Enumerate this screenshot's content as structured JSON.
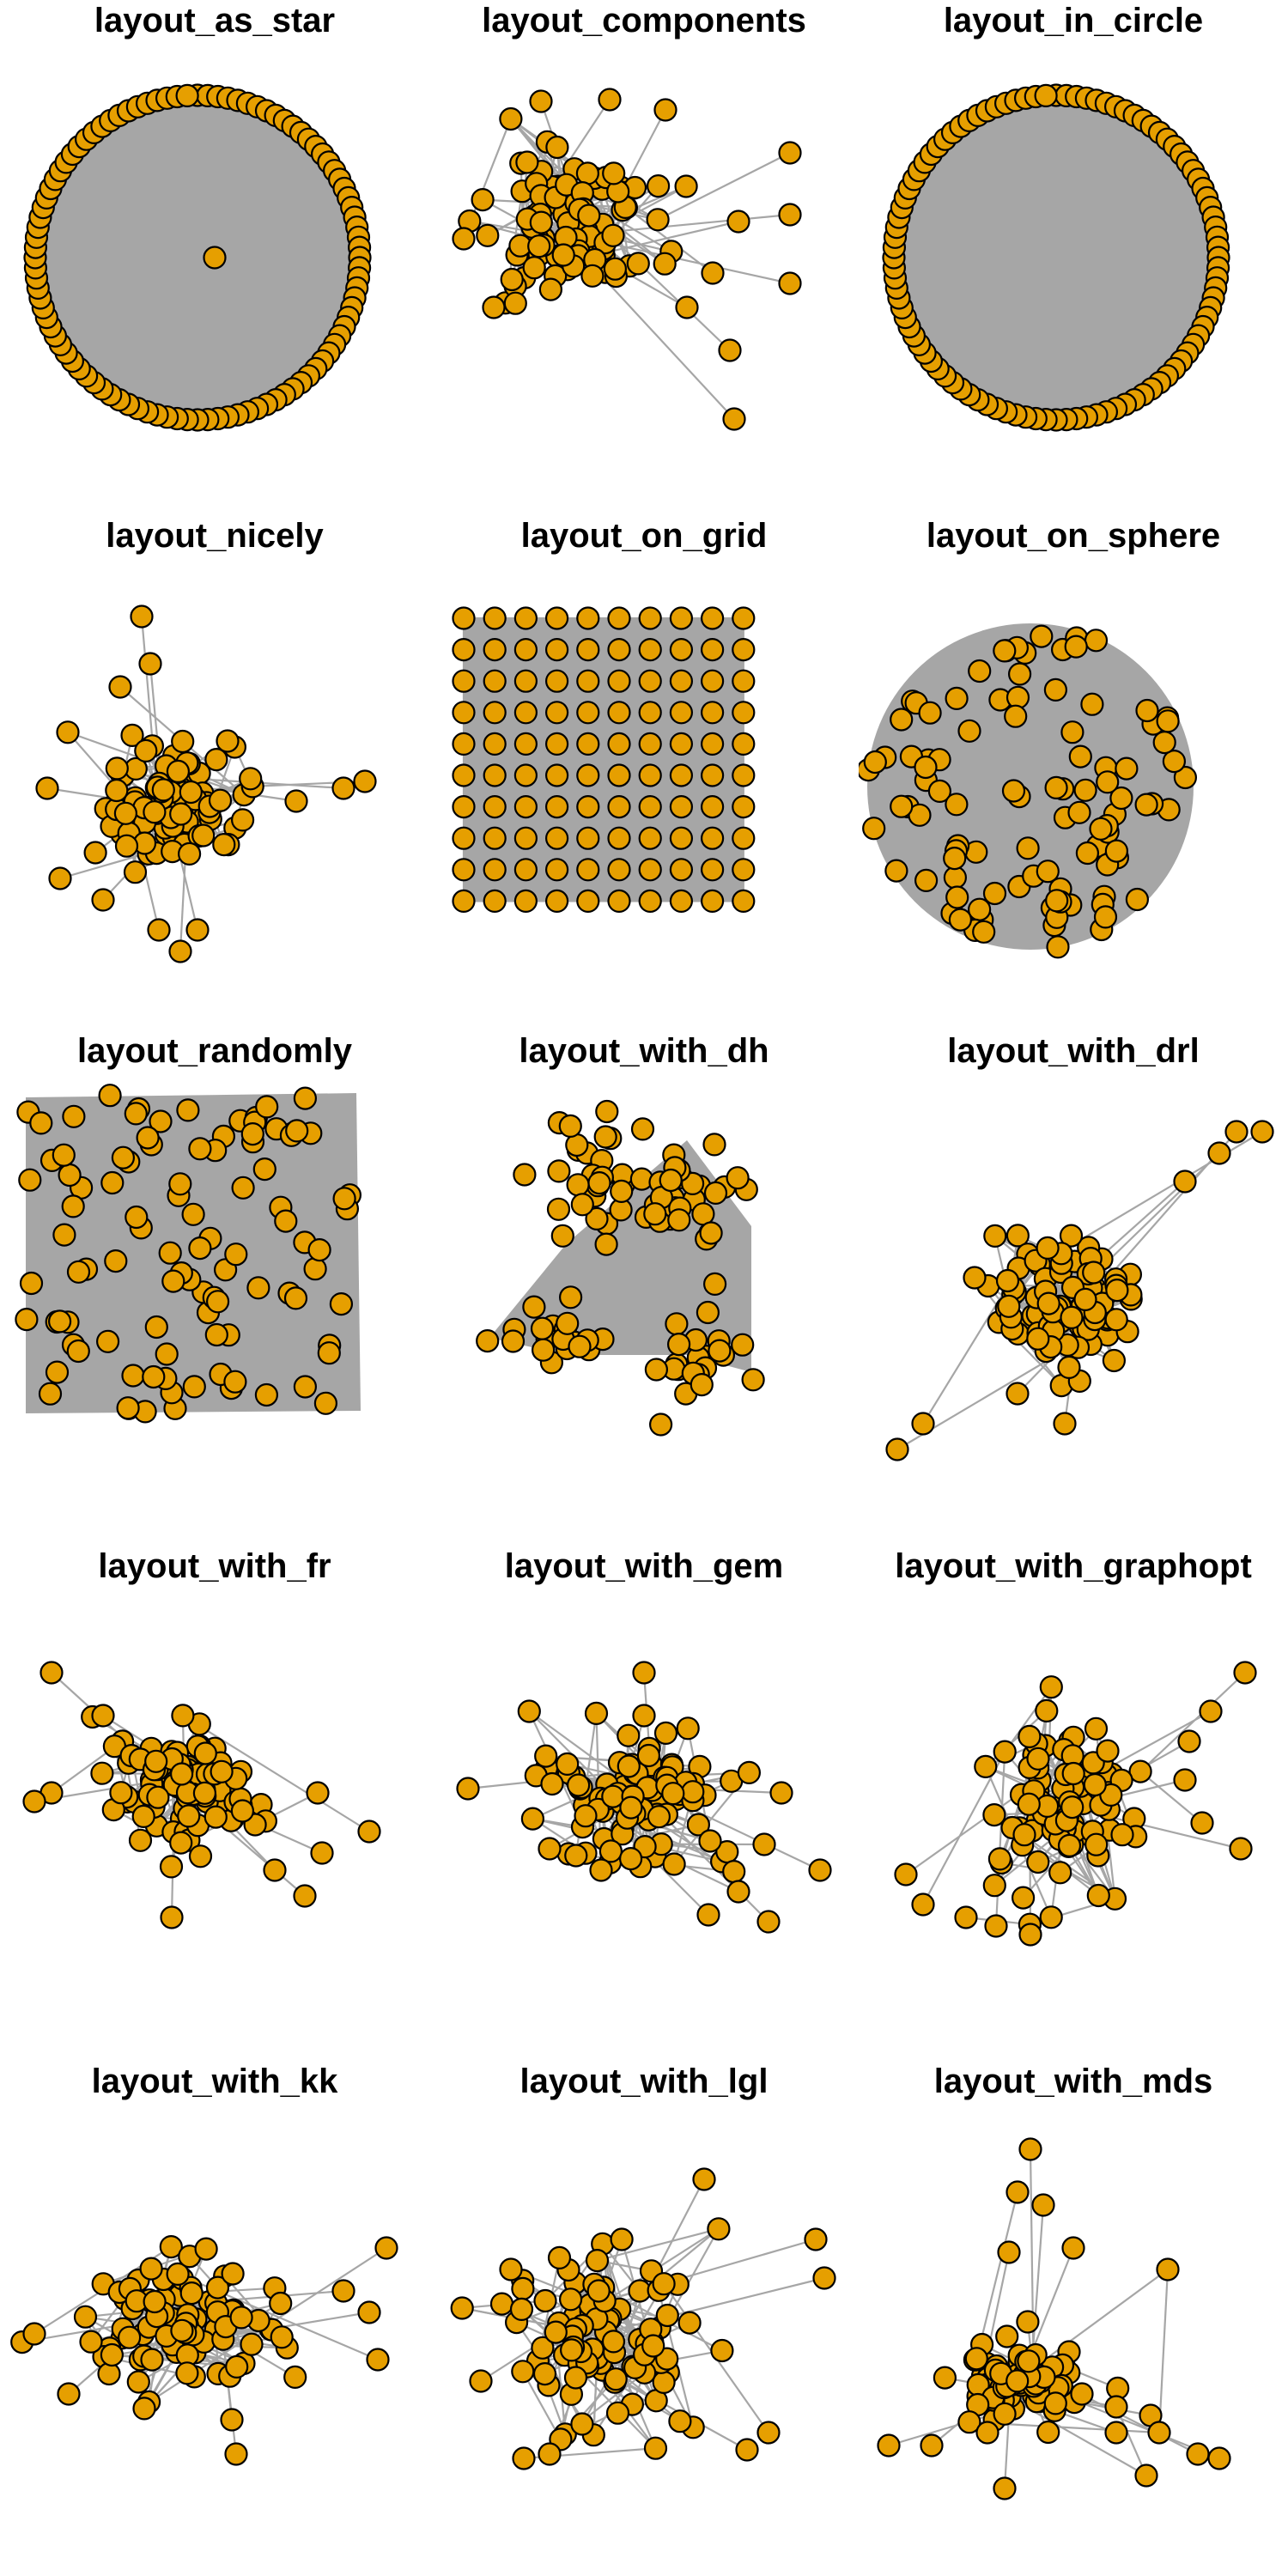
{
  "colors": {
    "node_fill": "#E69F00",
    "node_stroke": "#000000",
    "edge": "#A6A6A6",
    "background": "#FFFFFF"
  },
  "panels": [
    {
      "title": "layout_as_star"
    },
    {
      "title": "layout_components"
    },
    {
      "title": "layout_in_circle"
    },
    {
      "title": "layout_nicely"
    },
    {
      "title": "layout_on_grid"
    },
    {
      "title": "layout_on_sphere"
    },
    {
      "title": "layout_randomly"
    },
    {
      "title": "layout_with_dh"
    },
    {
      "title": "layout_with_drl"
    },
    {
      "title": "layout_with_fr"
    },
    {
      "title": "layout_with_gem"
    },
    {
      "title": "layout_with_graphopt"
    },
    {
      "title": "layout_with_kk"
    },
    {
      "title": "layout_with_lgl"
    },
    {
      "title": "layout_with_mds"
    }
  ]
}
